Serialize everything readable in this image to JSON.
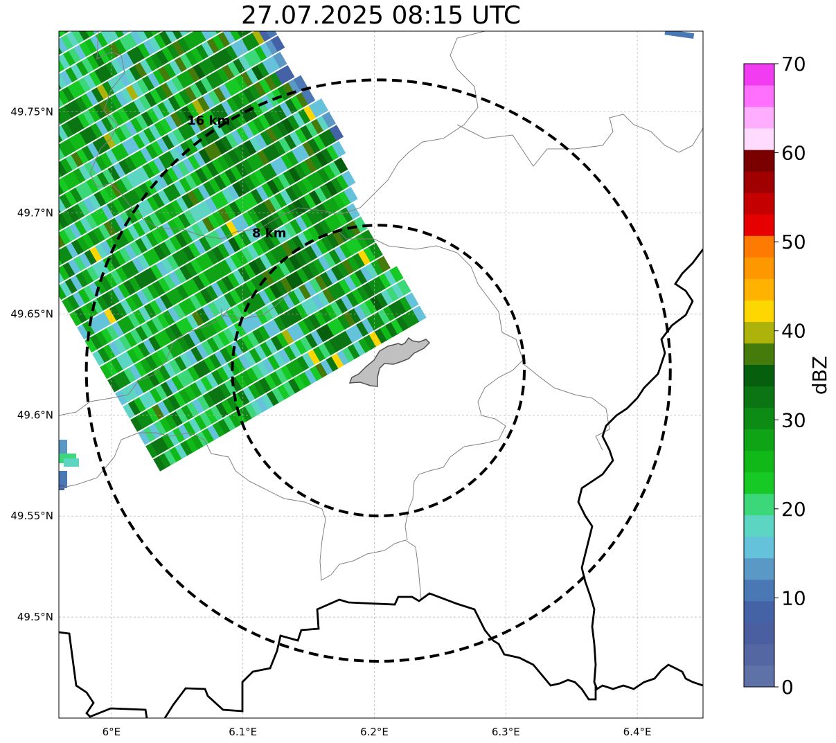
{
  "title": "27.07.2025 08:15 UTC",
  "map": {
    "lon_range": [
      5.96,
      6.45
    ],
    "lat_range": [
      49.45,
      49.79
    ],
    "center": {
      "lon": 6.203,
      "lat": 49.622
    },
    "lon_ticks": [
      {
        "value": 6.0,
        "label": "6°E"
      },
      {
        "value": 6.1,
        "label": "6.1°E"
      },
      {
        "value": 6.2,
        "label": "6.2°E"
      },
      {
        "value": 6.3,
        "label": "6.3°E"
      },
      {
        "value": 6.4,
        "label": "6.4°E"
      }
    ],
    "lat_ticks": [
      {
        "value": 49.5,
        "label": "49.5°N"
      },
      {
        "value": 49.55,
        "label": "49.55°N"
      },
      {
        "value": 49.6,
        "label": "49.6°N"
      },
      {
        "value": 49.65,
        "label": "49.65°N"
      },
      {
        "value": 49.7,
        "label": "49.7°N"
      },
      {
        "value": 49.75,
        "label": "49.75°N"
      }
    ],
    "grid": true,
    "range_rings": [
      {
        "radius_km": 8,
        "label": "8 km"
      },
      {
        "radius_km": 16,
        "label": "16 km"
      }
    ]
  },
  "colorbar": {
    "label": "dBZ",
    "min": 0,
    "max": 70,
    "tick_labels": [
      "0",
      "10",
      "20",
      "30",
      "40",
      "50",
      "60",
      "70"
    ],
    "colors": [
      "#5f72a8",
      "#5567a3",
      "#4a5fa0",
      "#4363a6",
      "#4a78b4",
      "#5a98c6",
      "#65c2db",
      "#5cd5c2",
      "#3cd778",
      "#16c925",
      "#10b818",
      "#0ea416",
      "#0c8c15",
      "#0a7512",
      "#065f0d",
      "#457b0a",
      "#adb30a",
      "#ffd700",
      "#ffb300",
      "#ff9800",
      "#ff7a00",
      "#e60000",
      "#c40000",
      "#a10000",
      "#7a0000",
      "#ffdcff",
      "#ffaeff",
      "#ff70ff",
      "#f23cf2"
    ]
  },
  "legend_colors": {
    "rings": "#000000",
    "city": "#c0c0c0",
    "borders": "#000000",
    "admin": "#808080"
  }
}
